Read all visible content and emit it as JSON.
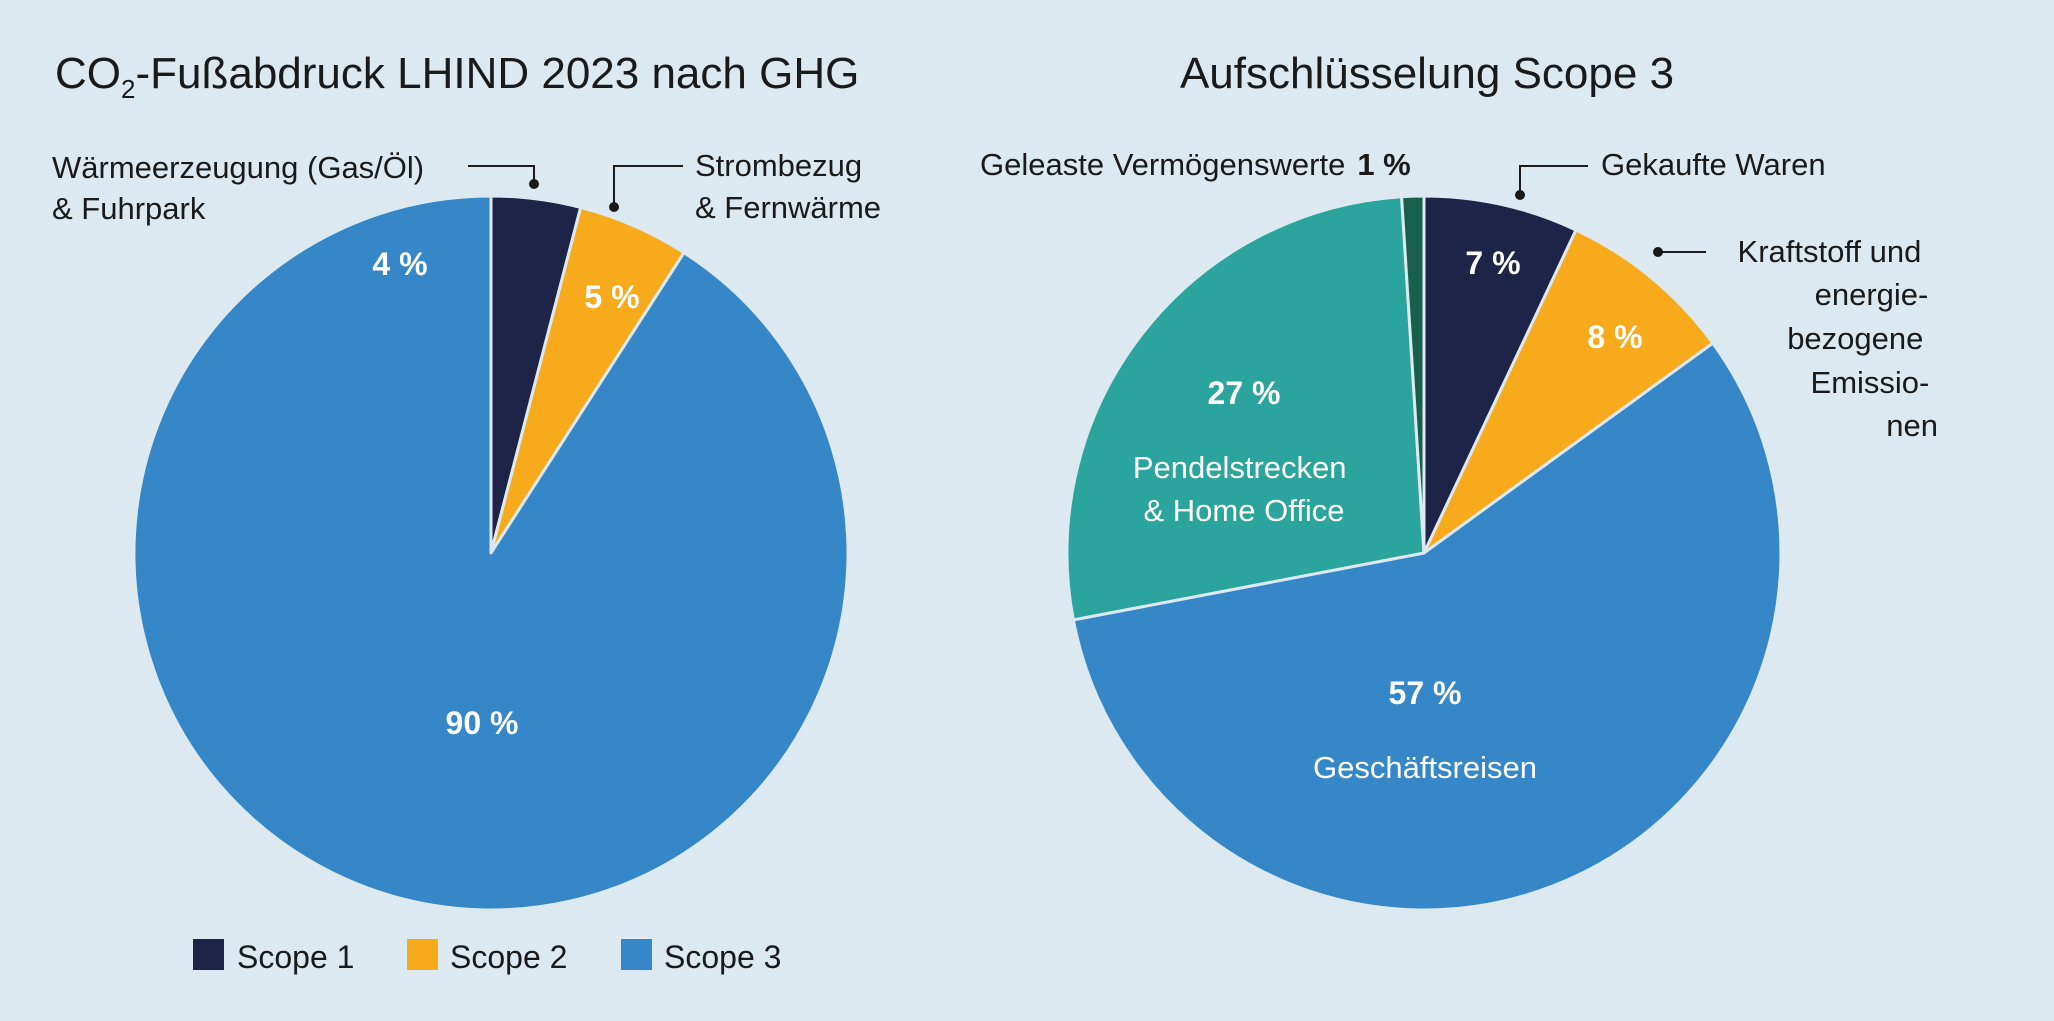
{
  "chart_data": [
    {
      "type": "pie",
      "title": {
        "prefix": "CO",
        "subscript": "2",
        "suffix": "-Fußabdruck LHIND 2023 nach GHG"
      },
      "slices": [
        {
          "label": "Scope 1",
          "value": 4,
          "value_label": "4 %",
          "color": "#1d2447"
        },
        {
          "label": "Scope 2",
          "value": 5,
          "value_label": "5 %",
          "color": "#f6aa1c"
        },
        {
          "label": "Scope 3",
          "value": 90,
          "value_label": "90 %",
          "color": "#3587c8"
        }
      ],
      "callouts": [
        {
          "slice": 0,
          "lines": [
            "Wärmeerzeugung (Gas/Öl)",
            "& Fuhrpark"
          ]
        },
        {
          "slice": 1,
          "lines": [
            "Strombezug",
            "& Fernwärme"
          ]
        }
      ],
      "legend": {
        "position": "bottom",
        "items": [
          "Scope 1",
          "Scope 2",
          "Scope 3"
        ]
      }
    },
    {
      "type": "pie",
      "title": "Aufschlüsselung Scope 3",
      "slices": [
        {
          "label": "Gekaufte Waren",
          "value": 7,
          "value_label": "7 %",
          "color": "#1d2447"
        },
        {
          "label": "Kraftstoff und energiebezogene Emissionen",
          "value": 8,
          "value_label": "8 %",
          "color": "#f6aa1c"
        },
        {
          "label": "Geschäftsreisen",
          "value": 57,
          "value_label": "57 %",
          "color": "#3587c8"
        },
        {
          "label": "Pendelstrecken & Home Office",
          "value": 27,
          "value_label": "27 %",
          "color": "#2aa49c"
        },
        {
          "label": "Geleaste Vermögenswerte",
          "value": 1,
          "value_label": "1 %",
          "color": "#17604c"
        }
      ],
      "callouts": [
        {
          "slice": 0,
          "lines": [
            "Gekaufte Waren"
          ]
        },
        {
          "slice": 1,
          "lines": [
            "Kraftstoff und",
            "energie-",
            "bezogene",
            "Emissio-",
            "nen"
          ]
        },
        {
          "slice": 4,
          "lines": [
            "Geleaste Vermögenswerte"
          ],
          "value_label": "1 %"
        }
      ],
      "inner_labels": [
        {
          "slice": 2,
          "lines": [
            "Geschäftsreisen"
          ]
        },
        {
          "slice": 3,
          "lines": [
            "Pendelstrecken",
            "& Home Office"
          ]
        }
      ]
    }
  ]
}
